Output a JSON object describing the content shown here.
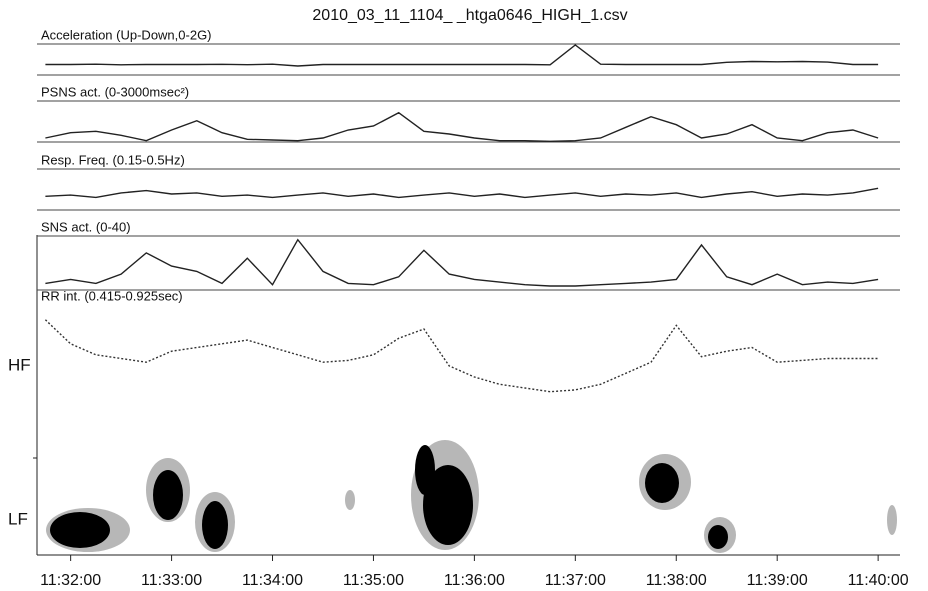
{
  "chart_data": {
    "type": "line",
    "title": "2010_03_11_1104_      _htga0646_HIGH_1.csv",
    "x": [
      "11:31:45",
      "11:32:00",
      "11:32:15",
      "11:32:30",
      "11:32:45",
      "11:33:00",
      "11:33:15",
      "11:33:30",
      "11:33:45",
      "11:34:00",
      "11:34:15",
      "11:34:30",
      "11:34:45",
      "11:35:00",
      "11:35:15",
      "11:35:30",
      "11:35:45",
      "11:36:00",
      "11:36:15",
      "11:36:30",
      "11:36:45",
      "11:37:00",
      "11:37:15",
      "11:37:30",
      "11:37:45",
      "11:38:00",
      "11:38:15",
      "11:38:30",
      "11:38:45",
      "11:39:00",
      "11:39:15",
      "11:39:30",
      "11:39:45",
      "11:40:00"
    ],
    "xlim": [
      "11:31:40",
      "11:40:13"
    ],
    "xticks": [
      "11:32:00",
      "11:33:00",
      "11:34:00",
      "11:35:00",
      "11:36:00",
      "11:37:00",
      "11:38:00",
      "11:39:00",
      "11:40:00"
    ],
    "series": [
      {
        "name": "Acceleration (Up-Down,0-2G)",
        "color": "#222222",
        "ylim": [
          0,
          2
        ],
        "values": [
          0.7,
          0.7,
          0.72,
          0.68,
          0.7,
          0.7,
          0.7,
          0.71,
          0.69,
          0.72,
          0.6,
          0.7,
          0.7,
          0.7,
          0.7,
          0.7,
          0.7,
          0.7,
          0.7,
          0.7,
          0.68,
          2.0,
          0.72,
          0.7,
          0.7,
          0.7,
          0.7,
          0.85,
          0.9,
          0.88,
          0.9,
          0.86,
          0.7,
          0.7
        ]
      },
      {
        "name": "PSNS act. (0-3000msec²)",
        "color": "#222222",
        "ylim": [
          0,
          3000
        ],
        "values": [
          300,
          700,
          800,
          500,
          100,
          900,
          1600,
          700,
          200,
          150,
          100,
          300,
          900,
          1200,
          2200,
          800,
          600,
          300,
          100,
          100,
          50,
          100,
          300,
          1100,
          1900,
          1300,
          300,
          600,
          1300,
          300,
          100,
          700,
          900,
          300
        ]
      },
      {
        "name": "Resp. Freq. (0.15-0.5Hz)",
        "color": "#222222",
        "ylim": [
          0.15,
          0.5
        ],
        "values": [
          0.27,
          0.28,
          0.26,
          0.3,
          0.32,
          0.29,
          0.3,
          0.27,
          0.28,
          0.26,
          0.28,
          0.3,
          0.27,
          0.29,
          0.26,
          0.28,
          0.3,
          0.27,
          0.29,
          0.26,
          0.28,
          0.3,
          0.27,
          0.29,
          0.28,
          0.3,
          0.26,
          0.29,
          0.31,
          0.27,
          0.29,
          0.28,
          0.3,
          0.34
        ]
      },
      {
        "name": "SNS act. (0-40)",
        "color": "#222222",
        "ylim": [
          0,
          40
        ],
        "values": [
          5,
          8,
          5,
          12,
          28,
          18,
          14,
          5,
          24,
          4,
          38,
          14,
          5,
          4,
          10,
          30,
          12,
          8,
          6,
          4,
          3,
          3,
          4,
          5,
          6,
          8,
          34,
          10,
          4,
          12,
          4,
          6,
          5,
          8
        ]
      },
      {
        "name": "RR int. (0.415-0.925sec)",
        "color": "#333333",
        "ylim": [
          0.415,
          0.925
        ],
        "values": [
          0.85,
          0.72,
          0.66,
          0.64,
          0.62,
          0.68,
          0.7,
          0.72,
          0.74,
          0.7,
          0.66,
          0.62,
          0.63,
          0.66,
          0.75,
          0.8,
          0.6,
          0.54,
          0.5,
          0.48,
          0.46,
          0.47,
          0.5,
          0.56,
          0.62,
          0.82,
          0.65,
          0.68,
          0.7,
          0.62,
          0.63,
          0.64,
          0.64,
          0.64
        ]
      }
    ]
  },
  "spectrogram": {
    "hf_label": "HF",
    "lf_label": "LF"
  }
}
